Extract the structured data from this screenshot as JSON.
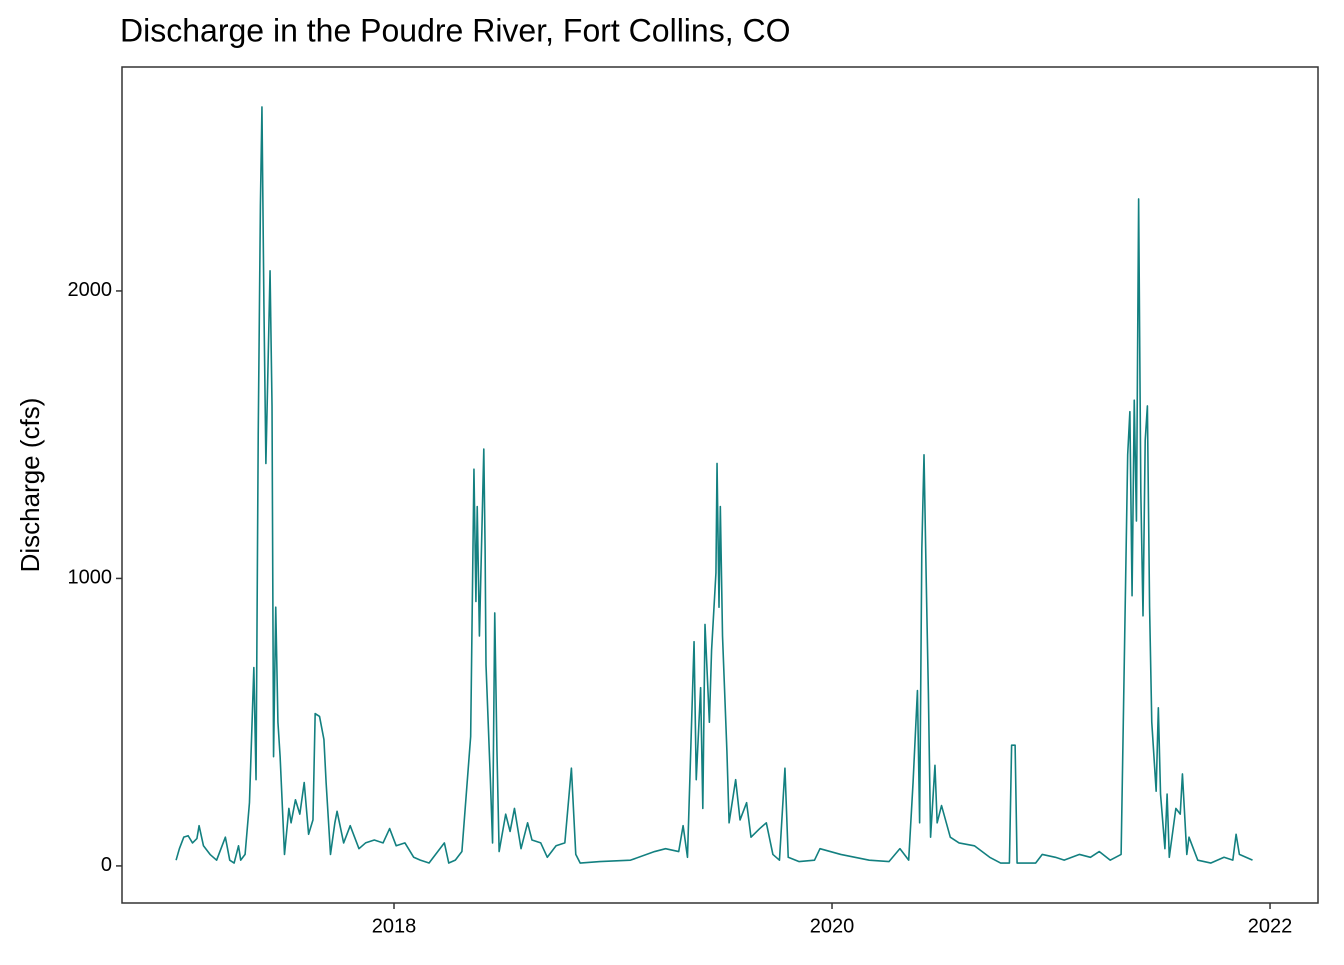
{
  "chart_data": {
    "type": "line",
    "title": "Discharge in the Poudre River, Fort Collins, CO",
    "ylabel": "Discharge (cfs)",
    "color": "#138080",
    "xlim": [
      2016.758,
      2022.219
    ],
    "xticks": [
      2018,
      2020,
      2022
    ],
    "ylim": [
      -129,
      2779
    ],
    "yticks": [
      0,
      1000,
      2000
    ],
    "x": [
      2017.005,
      2017.02,
      2017.04,
      2017.06,
      2017.08,
      2017.1,
      2017.11,
      2017.13,
      2017.16,
      2017.19,
      2017.21,
      2017.23,
      2017.25,
      2017.27,
      2017.29,
      2017.3,
      2017.32,
      2017.34,
      2017.36,
      2017.37,
      2017.38,
      2017.39,
      2017.397,
      2017.406,
      2017.415,
      2017.425,
      2017.434,
      2017.443,
      2017.45,
      2017.46,
      2017.47,
      2017.48,
      2017.5,
      2017.52,
      2017.53,
      2017.55,
      2017.57,
      2017.59,
      2017.61,
      2017.63,
      2017.64,
      2017.66,
      2017.68,
      2017.69,
      2017.71,
      2017.73,
      2017.74,
      2017.77,
      2017.8,
      2017.84,
      2017.87,
      2017.91,
      2017.95,
      2017.98,
      2018.01,
      2018.05,
      2018.09,
      2018.12,
      2018.16,
      2018.19,
      2018.23,
      2018.25,
      2018.28,
      2018.31,
      2018.33,
      2018.35,
      2018.365,
      2018.374,
      2018.38,
      2018.39,
      2018.41,
      2018.416,
      2018.42,
      2018.44,
      2018.45,
      2018.46,
      2018.47,
      2018.48,
      2018.51,
      2018.53,
      2018.55,
      2018.58,
      2018.61,
      2018.63,
      2018.67,
      2018.7,
      2018.74,
      2018.78,
      2018.81,
      2018.83,
      2018.85,
      2018.94,
      2019.08,
      2019.19,
      2019.24,
      2019.3,
      2019.32,
      2019.34,
      2019.37,
      2019.38,
      2019.4,
      2019.41,
      2019.42,
      2019.44,
      2019.45,
      2019.47,
      2019.475,
      2019.484,
      2019.49,
      2019.5,
      2019.52,
      2019.53,
      2019.56,
      2019.58,
      2019.61,
      2019.63,
      2019.67,
      2019.7,
      2019.73,
      2019.76,
      2019.785,
      2019.8,
      2019.85,
      2019.92,
      2019.945,
      2020.04,
      2020.17,
      2020.26,
      2020.31,
      2020.35,
      2020.37,
      2020.39,
      2020.4,
      2020.41,
      2020.42,
      2020.43,
      2020.44,
      2020.45,
      2020.47,
      2020.48,
      2020.5,
      2020.54,
      2020.58,
      2020.65,
      2020.72,
      2020.77,
      2020.81,
      2020.82,
      2020.836,
      2020.845,
      2020.93,
      2020.96,
      2021.02,
      2021.06,
      2021.13,
      2021.18,
      2021.22,
      2021.27,
      2021.32,
      2021.33,
      2021.35,
      2021.36,
      2021.37,
      2021.38,
      2021.39,
      2021.4,
      2021.41,
      2021.42,
      2021.43,
      2021.44,
      2021.45,
      2021.46,
      2021.48,
      2021.49,
      2021.5,
      2021.52,
      2021.53,
      2021.54,
      2021.57,
      2021.59,
      2021.6,
      2021.62,
      2021.63,
      2021.67,
      2021.73,
      2021.79,
      2021.83,
      2021.845,
      2021.86,
      2021.92
    ],
    "values": [
      20,
      60,
      100,
      105,
      80,
      95,
      140,
      70,
      40,
      20,
      60,
      100,
      20,
      10,
      70,
      20,
      40,
      220,
      690,
      300,
      1500,
      2300,
      2640,
      1950,
      1400,
      1750,
      2070,
      1600,
      380,
      900,
      500,
      380,
      40,
      200,
      150,
      230,
      180,
      290,
      110,
      160,
      530,
      520,
      440,
      290,
      40,
      150,
      190,
      80,
      140,
      60,
      80,
      90,
      80,
      130,
      70,
      80,
      30,
      20,
      10,
      40,
      80,
      10,
      20,
      50,
      250,
      450,
      1380,
      920,
      1250,
      800,
      1450,
      1100,
      700,
      300,
      80,
      880,
      400,
      50,
      180,
      120,
      200,
      60,
      150,
      90,
      80,
      30,
      70,
      80,
      340,
      40,
      10,
      15,
      20,
      50,
      60,
      50,
      140,
      30,
      780,
      300,
      620,
      200,
      840,
      500,
      750,
      1020,
      1400,
      900,
      1250,
      800,
      400,
      150,
      300,
      160,
      220,
      100,
      130,
      150,
      40,
      20,
      340,
      30,
      15,
      20,
      60,
      40,
      20,
      15,
      60,
      20,
      290,
      610,
      150,
      1100,
      1430,
      1000,
      600,
      100,
      350,
      150,
      210,
      100,
      80,
      70,
      30,
      10,
      10,
      420,
      420,
      10,
      10,
      40,
      30,
      20,
      40,
      30,
      50,
      20,
      40,
      500,
      1430,
      1580,
      940,
      1620,
      1200,
      2320,
      1300,
      870,
      1480,
      1600,
      900,
      500,
      260,
      550,
      250,
      60,
      250,
      30,
      200,
      180,
      320,
      40,
      100,
      20,
      10,
      30,
      20,
      110,
      40,
      20
    ]
  }
}
